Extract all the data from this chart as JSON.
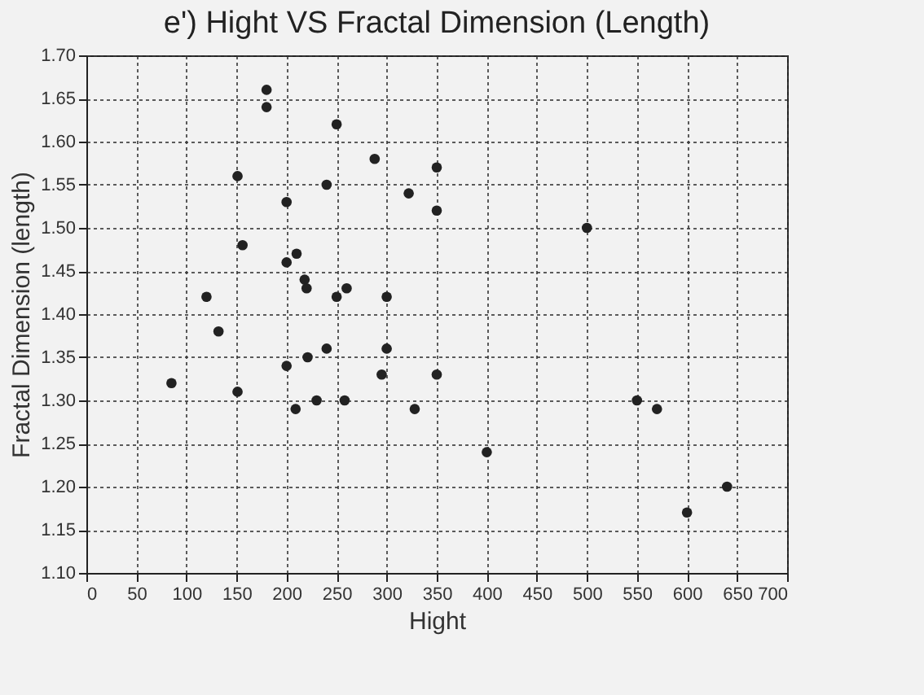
{
  "chart_data": {
    "type": "scatter",
    "title": "e') Hight VS Fractal Dimension (Length)",
    "xlabel": "Hight",
    "ylabel": "Fractal Dimension (length)",
    "x": [
      180,
      180,
      250,
      288,
      151,
      240,
      322,
      200,
      156,
      200,
      210,
      218,
      220,
      260,
      250,
      300,
      120,
      350,
      350,
      500,
      132,
      85,
      151,
      200,
      221,
      240,
      300,
      295,
      209,
      230,
      258,
      328,
      350,
      400,
      550,
      570,
      600,
      640
    ],
    "series": [
      {
        "color": "#222222",
        "values": [
          1.66,
          1.64,
          1.62,
          1.58,
          1.56,
          1.55,
          1.54,
          1.53,
          1.48,
          1.46,
          1.47,
          1.44,
          1.43,
          1.43,
          1.42,
          1.42,
          1.42,
          1.57,
          1.52,
          1.5,
          1.38,
          1.32,
          1.31,
          1.34,
          1.35,
          1.36,
          1.36,
          1.33,
          1.29,
          1.3,
          1.3,
          1.29,
          1.33,
          1.24,
          1.3,
          1.29,
          1.17,
          1.2
        ]
      }
    ],
    "xlim": [
      0,
      700
    ],
    "xticks": [
      0,
      50,
      100,
      150,
      200,
      250,
      300,
      350,
      400,
      450,
      500,
      550,
      600,
      650,
      700
    ],
    "ylim": [
      1.1,
      1.7
    ],
    "yticks": [
      {
        "value": 1.1,
        "label": "1.10"
      },
      {
        "value": 1.15,
        "label": "1.15"
      },
      {
        "value": 1.2,
        "label": "1.20"
      },
      {
        "value": 1.25,
        "label": "1.25"
      },
      {
        "value": 1.3,
        "label": "1.30"
      },
      {
        "value": 1.35,
        "label": "1.35"
      },
      {
        "value": 1.4,
        "label": "1.40"
      },
      {
        "value": 1.45,
        "label": "1.45"
      },
      {
        "value": 1.5,
        "label": "1.50"
      },
      {
        "value": 1.55,
        "label": "1.55"
      },
      {
        "value": 1.6,
        "label": "1.60"
      },
      {
        "value": 1.65,
        "label": "1.65"
      },
      {
        "value": 1.7,
        "label": "1.70"
      }
    ],
    "grid": true,
    "marker": "circle",
    "legend": false
  }
}
